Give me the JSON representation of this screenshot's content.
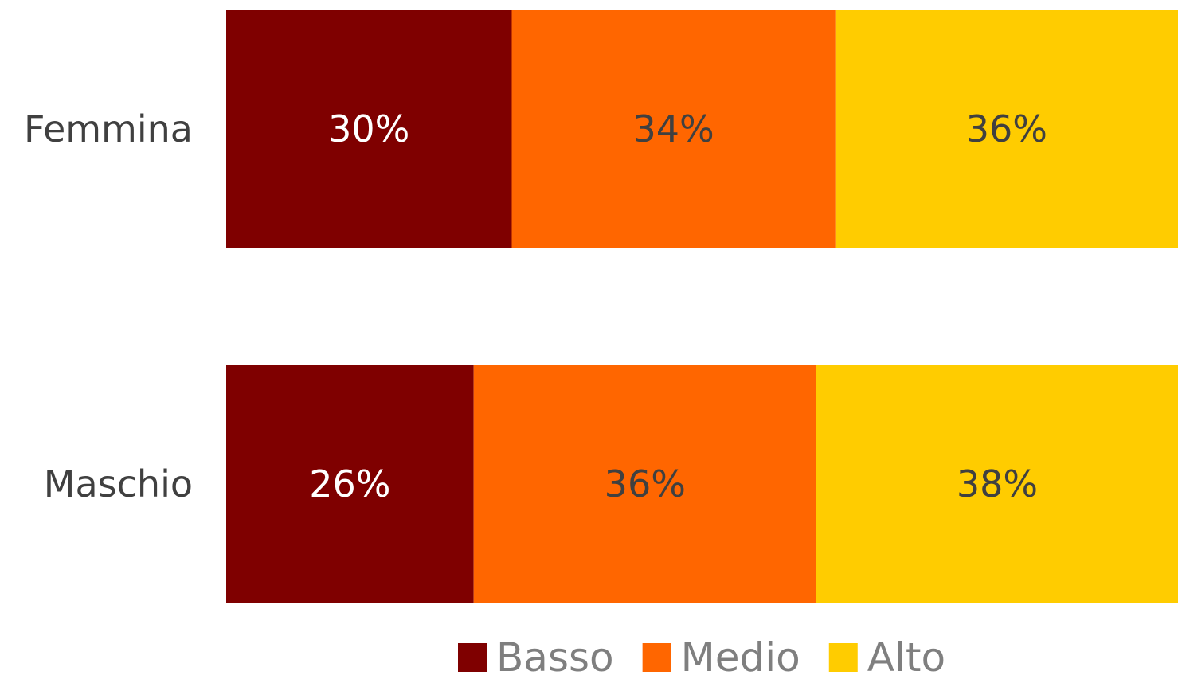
{
  "chart_data": {
    "type": "bar",
    "orientation": "horizontal",
    "stacked": "percent",
    "categories": [
      "Femmina",
      "Maschio"
    ],
    "series": [
      {
        "name": "Basso",
        "color": "#7f0000",
        "label_color": "#ffffff",
        "values": [
          30,
          26
        ],
        "labels": [
          "30%",
          "26%"
        ]
      },
      {
        "name": "Medio",
        "color": "#ff6600",
        "label_color": "#404040",
        "values": [
          34,
          36
        ],
        "labels": [
          "34%",
          "36%"
        ]
      },
      {
        "name": "Alto",
        "color": "#ffcc00",
        "label_color": "#404040",
        "values": [
          36,
          38
        ],
        "labels": [
          "36%",
          "38%"
        ]
      }
    ],
    "xlim": [
      0,
      100
    ],
    "grid": false,
    "legend_position": "bottom"
  }
}
